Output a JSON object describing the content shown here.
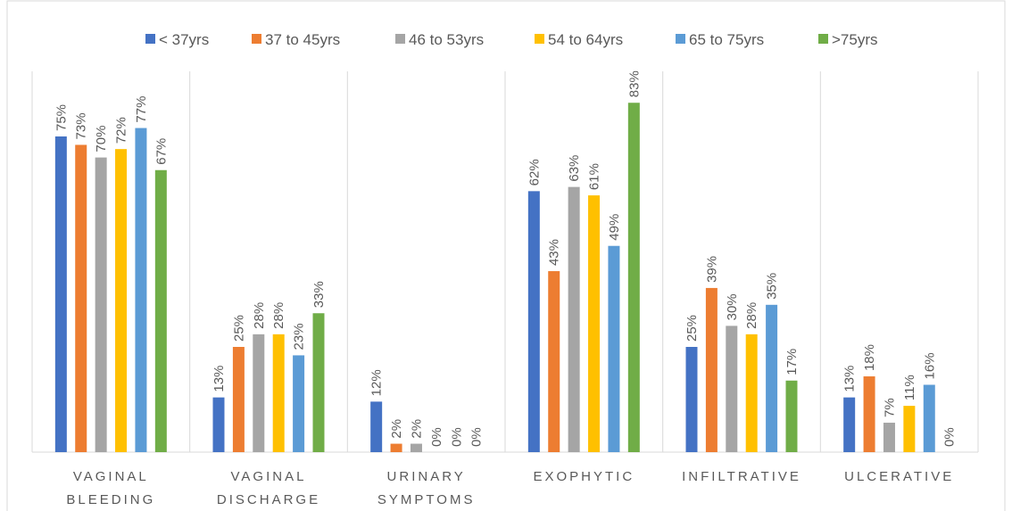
{
  "chart_data": {
    "type": "bar",
    "categories": [
      "VAGINAL BLEEDING",
      "VAGINAL DISCHARGE",
      "URINARY SYMPTOMS",
      "EXOPHYTIC",
      "INFILTRATIVE",
      "ULCERATIVE"
    ],
    "legend": "top",
    "series": [
      {
        "name": "< 37yrs",
        "color": "#4472c4",
        "values": [
          75,
          13,
          12,
          62,
          25,
          13
        ],
        "value_labels": [
          "75%",
          "13%",
          "12%",
          "62%",
          "25%",
          "13%"
        ]
      },
      {
        "name": "37 to 45yrs",
        "color": "#ed7d31",
        "values": [
          73,
          25,
          2,
          43,
          39,
          18
        ],
        "value_labels": [
          "73%",
          "25%",
          "2%",
          "43%",
          "39%",
          "18%"
        ]
      },
      {
        "name": "46 to 53yrs",
        "color": "#a5a5a5",
        "values": [
          70,
          28,
          2,
          63,
          30,
          7
        ],
        "value_labels": [
          "70%",
          "28%",
          "2%",
          "63%",
          "30%",
          "7%"
        ]
      },
      {
        "name": "54 to 64yrs",
        "color": "#ffc000",
        "values": [
          72,
          28,
          0,
          61,
          28,
          11
        ],
        "value_labels": [
          "72%",
          "28%",
          "0%",
          "61%",
          "28%",
          "11%"
        ]
      },
      {
        "name": "65 to 75yrs",
        "color": "#5b9bd5",
        "values": [
          77,
          23,
          0,
          49,
          35,
          16
        ],
        "value_labels": [
          "77%",
          "23%",
          "0%",
          "49%",
          "35%",
          "16%"
        ]
      },
      {
        "name": ">75yrs",
        "color": "#70ad47",
        "values": [
          67,
          33,
          0,
          83,
          17,
          0
        ],
        "value_labels": [
          "67%",
          "33%",
          "0%",
          "83%",
          "17%",
          "0%"
        ]
      }
    ]
  }
}
